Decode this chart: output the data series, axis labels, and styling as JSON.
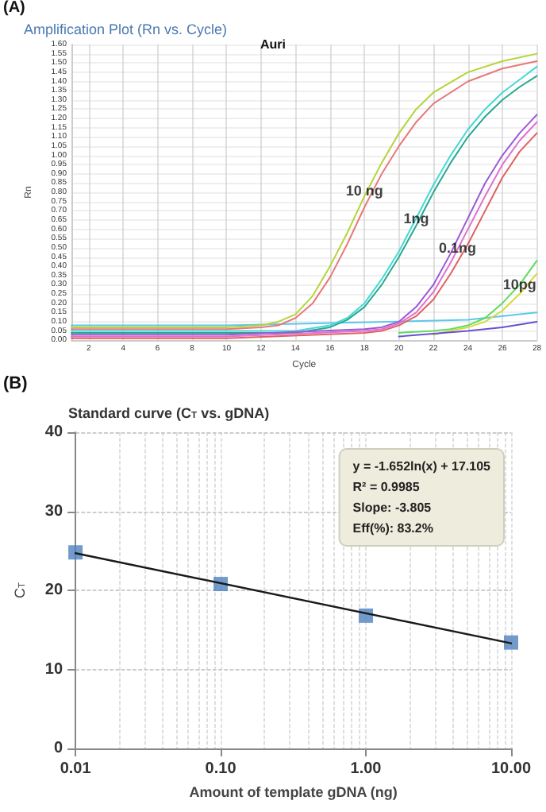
{
  "chart_data": [
    {
      "type": "line",
      "title": "Amplification Plot (Rn vs. Cycle)",
      "subtitle": "Auri",
      "xlabel": "Cycle",
      "ylabel": "Rn",
      "annotations": [
        "(A)",
        {
          "text": "10 ng",
          "x": 18,
          "y": 0.81
        },
        {
          "text": "1ng",
          "x": 21,
          "y": 0.66
        },
        {
          "text": "0.1ng",
          "x": 23.4,
          "y": 0.5
        },
        {
          "text": "10pg",
          "x": 27,
          "y": 0.3
        }
      ],
      "series": [
        {
          "color": "#5cc8e8",
          "x": [
            1,
            10,
            24,
            28
          ],
          "values": [
            0.08,
            0.08,
            0.11,
            0.15
          ]
        },
        {
          "color": "#b5d43a",
          "x": [
            1,
            10,
            12,
            13,
            14,
            15,
            16,
            17,
            18,
            19,
            20,
            21,
            22,
            24,
            26,
            28
          ],
          "values": [
            0.07,
            0.07,
            0.08,
            0.1,
            0.14,
            0.24,
            0.4,
            0.58,
            0.78,
            0.96,
            1.12,
            1.25,
            1.34,
            1.45,
            1.51,
            1.55
          ]
        },
        {
          "color": "#e8787a",
          "x": [
            1,
            10,
            12,
            13,
            14,
            15,
            16,
            17,
            18,
            19,
            20,
            21,
            22,
            24,
            26,
            28
          ],
          "values": [
            0.06,
            0.06,
            0.07,
            0.08,
            0.12,
            0.2,
            0.34,
            0.52,
            0.72,
            0.9,
            1.05,
            1.18,
            1.28,
            1.4,
            1.47,
            1.51
          ]
        },
        {
          "color": "#45d8d8",
          "x": [
            1,
            8,
            14,
            16,
            17,
            18,
            19,
            20,
            21,
            22,
            23,
            24,
            25,
            26,
            27,
            28
          ],
          "values": [
            0.05,
            0.05,
            0.05,
            0.08,
            0.12,
            0.2,
            0.33,
            0.48,
            0.66,
            0.84,
            1.0,
            1.14,
            1.25,
            1.34,
            1.41,
            1.48
          ]
        },
        {
          "color": "#2aa88e",
          "x": [
            1,
            8,
            14,
            16,
            17,
            18,
            19,
            20,
            21,
            22,
            23,
            24,
            25,
            26,
            27,
            28
          ],
          "values": [
            0.04,
            0.04,
            0.04,
            0.07,
            0.11,
            0.18,
            0.3,
            0.45,
            0.62,
            0.8,
            0.96,
            1.1,
            1.21,
            1.3,
            1.37,
            1.43
          ]
        },
        {
          "color": "#9b59d6",
          "x": [
            1,
            10,
            18,
            19,
            20,
            21,
            22,
            23,
            24,
            25,
            26,
            27,
            28
          ],
          "values": [
            0.03,
            0.03,
            0.06,
            0.07,
            0.1,
            0.18,
            0.3,
            0.47,
            0.66,
            0.85,
            1.0,
            1.12,
            1.22
          ]
        },
        {
          "color": "#e070d0",
          "x": [
            1,
            10,
            18,
            19,
            20,
            21,
            22,
            23,
            24,
            25,
            26,
            27,
            28
          ],
          "values": [
            0.02,
            0.02,
            0.05,
            0.06,
            0.09,
            0.15,
            0.26,
            0.42,
            0.6,
            0.78,
            0.95,
            1.08,
            1.18
          ]
        },
        {
          "color": "#e06060",
          "x": [
            1,
            10,
            18,
            19,
            20,
            21,
            22,
            23,
            24,
            25,
            26,
            27,
            28
          ],
          "values": [
            0.01,
            0.01,
            0.04,
            0.05,
            0.08,
            0.13,
            0.22,
            0.36,
            0.52,
            0.7,
            0.88,
            1.02,
            1.12
          ]
        },
        {
          "color": "#5ddc5d",
          "x": [
            20,
            22,
            23,
            24,
            25,
            26,
            27,
            28
          ],
          "values": [
            0.04,
            0.05,
            0.06,
            0.08,
            0.12,
            0.2,
            0.3,
            0.43
          ]
        },
        {
          "color": "#d8d840",
          "x": [
            22,
            23,
            24,
            25,
            26,
            27,
            28
          ],
          "values": [
            0.03,
            0.05,
            0.07,
            0.1,
            0.16,
            0.25,
            0.36
          ]
        },
        {
          "color": "#6a50d0",
          "x": [
            20,
            24,
            26,
            28
          ],
          "values": [
            0.02,
            0.05,
            0.07,
            0.1
          ]
        }
      ],
      "xlim": [
        1,
        28
      ],
      "ylim": [
        0,
        1.6
      ],
      "xticks": [
        2,
        4,
        6,
        8,
        10,
        12,
        14,
        16,
        18,
        20,
        22,
        24,
        26,
        28
      ],
      "yticks": [
        {
          "value": 0,
          "label": "0.00"
        },
        {
          "value": 0.05,
          "label": "0.05"
        },
        {
          "value": 0.1,
          "label": "0.10"
        },
        {
          "value": 0.15,
          "label": "0.15"
        },
        {
          "value": 0.2,
          "label": "0.20"
        },
        {
          "value": 0.25,
          "label": "0.25"
        },
        {
          "value": 0.3,
          "label": "0.30"
        },
        {
          "value": 0.35,
          "label": "0.35"
        },
        {
          "value": 0.4,
          "label": "0.40"
        },
        {
          "value": 0.45,
          "label": "0.45"
        },
        {
          "value": 0.5,
          "label": "0.50"
        },
        {
          "value": 0.55,
          "label": "0.55"
        },
        {
          "value": 0.6,
          "label": "0.60"
        },
        {
          "value": 0.65,
          "label": "0.65"
        },
        {
          "value": 0.7,
          "label": "0.70"
        },
        {
          "value": 0.75,
          "label": "0.75"
        },
        {
          "value": 0.8,
          "label": "0.80"
        },
        {
          "value": 0.85,
          "label": "0.85"
        },
        {
          "value": 0.9,
          "label": "0.90"
        },
        {
          "value": 0.95,
          "label": "0.95"
        },
        {
          "value": 1,
          "label": "1.00"
        },
        {
          "value": 1.05,
          "label": "1.05"
        },
        {
          "value": 1.1,
          "label": "1.10"
        },
        {
          "value": 1.15,
          "label": "1.15"
        },
        {
          "value": 1.2,
          "label": "1.20"
        },
        {
          "value": 1.25,
          "label": "1.25"
        },
        {
          "value": 1.3,
          "label": "1.30"
        },
        {
          "value": 1.35,
          "label": "1.35"
        },
        {
          "value": 1.4,
          "label": "1.40"
        },
        {
          "value": 1.45,
          "label": "1.45"
        },
        {
          "value": 1.5,
          "label": "1.50"
        },
        {
          "value": 1.55,
          "label": "1.55"
        },
        {
          "value": 1.6,
          "label": "1.60"
        }
      ],
      "grid": true,
      "marker": "none"
    },
    {
      "type": "scatter",
      "title": "Standard curve (C$_{T}$ vs. gDNA)",
      "xlabel": "Amount of template gDNA (ng)",
      "ylabel": "C$_{T}$",
      "annotations": [
        "(B)",
        "y = -1.652ln(x) + 17.105",
        "R² = 0.9985",
        "Slope: -3.805",
        "Eff(%): 83.2%"
      ],
      "series": [
        {
          "type": "scatter",
          "color": "#4f81bd",
          "x": [
            0.01,
            0.1,
            1,
            10
          ],
          "values": [
            24.8,
            20.8,
            16.8,
            13.4
          ]
        },
        {
          "type": "line",
          "marker": "none",
          "color": "#1a1a1a",
          "x": [
            0.01,
            10
          ],
          "values": [
            24.7,
            13.3
          ]
        }
      ],
      "log": "x",
      "xlim": [
        0.01,
        10
      ],
      "ylim": [
        0,
        40
      ],
      "xticks": [
        {
          "value": 0.01,
          "label": "0.01"
        },
        {
          "value": 0.1,
          "label": "0.10"
        },
        {
          "value": 1,
          "label": "1.00"
        },
        {
          "value": 10,
          "label": "10.00"
        }
      ],
      "yticks": [
        0,
        10,
        20,
        30,
        40
      ],
      "grid": true,
      "marker": "square"
    }
  ]
}
